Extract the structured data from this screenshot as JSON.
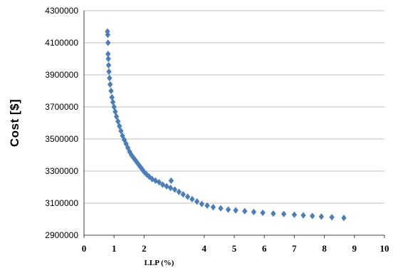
{
  "chart_data": {
    "type": "scatter",
    "xlabel": "LLP (%)",
    "ylabel": "Cost [$]",
    "xlim": [
      0,
      10
    ],
    "ylim": [
      2900000,
      4300000
    ],
    "x_ticks": [
      "0",
      "1",
      "2",
      "4",
      "5",
      "6",
      "7",
      "8",
      "9",
      "10"
    ],
    "y_ticks": [
      "2900000",
      "3100000",
      "3300000",
      "3500000",
      "3700000",
      "3900000",
      "4100000",
      "4300000"
    ],
    "marker": "diamond",
    "color": "#4a7ebb",
    "grid": "horizontal",
    "legend": "none",
    "series": [
      {
        "x": [
          0.78,
          0.79,
          0.8,
          0.8,
          0.81,
          0.82,
          0.83,
          0.85,
          0.87,
          0.9,
          0.93,
          0.96,
          1.0,
          1.04,
          1.08,
          1.13,
          1.18,
          1.23,
          1.28,
          1.34,
          1.4,
          1.46,
          1.52,
          1.58,
          1.64,
          1.7,
          1.76,
          1.82,
          1.88,
          1.94,
          2.0,
          2.08,
          2.17,
          2.27,
          2.38,
          2.5,
          2.62,
          2.75,
          2.88,
          2.9,
          3.02,
          3.16,
          3.3,
          3.45,
          3.6,
          3.76,
          3.92,
          4.1,
          4.3,
          4.55,
          4.8,
          5.05,
          5.35,
          5.65,
          5.95,
          6.3,
          6.65,
          7.0,
          7.3,
          7.6,
          7.9,
          8.25,
          8.65
        ],
        "y": [
          4170000,
          4150000,
          4100000,
          4030000,
          4000000,
          3960000,
          3920000,
          3880000,
          3840000,
          3800000,
          3760000,
          3730000,
          3700000,
          3670000,
          3640000,
          3610000,
          3580000,
          3550000,
          3520000,
          3495000,
          3470000,
          3445000,
          3420000,
          3400000,
          3385000,
          3370000,
          3355000,
          3340000,
          3325000,
          3310000,
          3295000,
          3280000,
          3265000,
          3250000,
          3240000,
          3230000,
          3215000,
          3205000,
          3195000,
          3240000,
          3185000,
          3170000,
          3155000,
          3140000,
          3125000,
          3110000,
          3095000,
          3085000,
          3075000,
          3068000,
          3060000,
          3055000,
          3050000,
          3045000,
          3040000,
          3035000,
          3032000,
          3028000,
          3024000,
          3020000,
          3016000,
          3012000,
          3008000
        ]
      }
    ]
  }
}
